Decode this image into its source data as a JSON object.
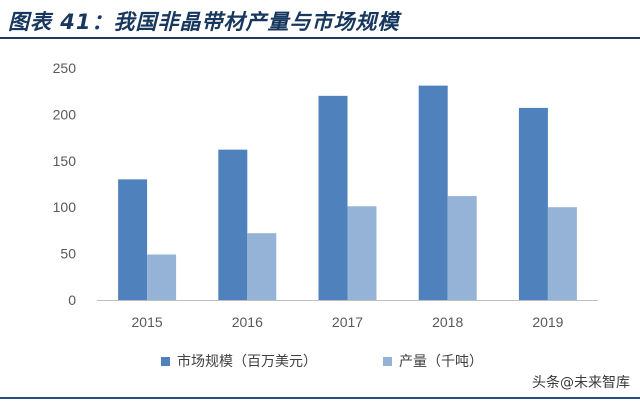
{
  "figure": {
    "title": "图表 41：我国非晶带材产量与市场规模",
    "watermark": "头条@未来智库"
  },
  "chart_data": {
    "type": "bar",
    "title": "",
    "xlabel": "",
    "ylabel": "",
    "categories": [
      "2015",
      "2016",
      "2017",
      "2018",
      "2019"
    ],
    "series": [
      {
        "name": "市场规模（百万美元）",
        "color": "#4f81bd",
        "values": [
          130,
          162,
          220,
          231,
          207
        ]
      },
      {
        "name": "产量（千吨）",
        "color": "#95b3d7",
        "values": [
          49,
          72,
          101,
          112,
          100
        ]
      }
    ],
    "ylim": [
      0,
      250
    ],
    "yticks": [
      0,
      50,
      100,
      150,
      200,
      250
    ],
    "grid": false,
    "legend": "bottom"
  }
}
